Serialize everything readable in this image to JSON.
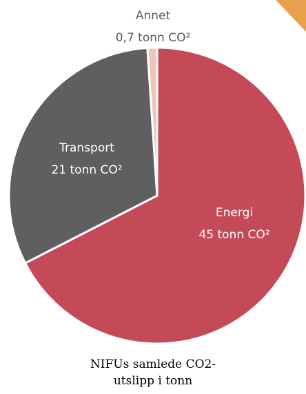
{
  "chart_data": {
    "type": "pie",
    "slices": [
      {
        "label": "Energi",
        "value_text": "45 tonn CO²",
        "value": 45,
        "color": "#C44A58"
      },
      {
        "label": "Transport",
        "value_text": "21 tonn CO²",
        "value": 21,
        "color": "#5F5F61"
      },
      {
        "label": "Annet",
        "value_text": "0,7 tonn CO²",
        "value": 0.7,
        "color": "#EFC7B5"
      }
    ],
    "caption_lines": [
      "NIFUs samlede CO2-",
      "utslipp i tonn"
    ]
  },
  "decoration": {
    "corner_accent_color": "#E8A04C"
  }
}
